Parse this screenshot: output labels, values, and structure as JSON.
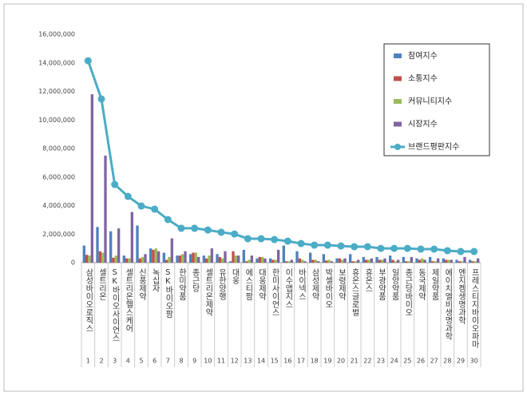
{
  "chart_data": {
    "type": "bar_line",
    "categories": [
      "삼성바이오로직스",
      "셀트리온",
      "SK바이오사이언스",
      "셀트리온헬스케어",
      "신풍제약",
      "녹십자",
      "SK바이오팜",
      "한미약품",
      "종근당",
      "셀트리온제약",
      "유한양행",
      "대웅",
      "에스티팜",
      "대웅제약",
      "한미사이언스",
      "이수앱지스",
      "바이넥스",
      "삼성제약",
      "박셀바이오",
      "보령제약",
      "휴온스글로벌",
      "휴온스",
      "부광약품",
      "일양약품",
      "종근당바이오",
      "동국제약",
      "제일약품",
      "에이치엘비생명과학",
      "엔지켐생명과학",
      "프레스티지바이오파마"
    ],
    "ranks": [
      1,
      2,
      3,
      4,
      5,
      6,
      7,
      8,
      9,
      10,
      11,
      12,
      13,
      14,
      15,
      16,
      17,
      18,
      19,
      20,
      21,
      22,
      23,
      24,
      25,
      26,
      27,
      28,
      29,
      30
    ],
    "series": [
      {
        "name": "참여지수",
        "color": "#4f81bd",
        "kind": "bar",
        "values": [
          1200000,
          2500000,
          2200000,
          500000,
          2600000,
          1000000,
          700000,
          500000,
          600000,
          500000,
          600000,
          100000,
          900000,
          300000,
          300000,
          1200000,
          800000,
          700000,
          600000,
          300000,
          600000,
          400000,
          400000,
          500000,
          400000,
          300000,
          400000,
          300000,
          200000,
          200000
        ]
      },
      {
        "name": "소통지수",
        "color": "#c0504d",
        "kind": "bar",
        "values": [
          550000,
          800000,
          350000,
          300000,
          300000,
          900000,
          200000,
          500000,
          700000,
          300000,
          400000,
          800000,
          100000,
          400000,
          200000,
          100000,
          300000,
          200000,
          150000,
          300000,
          100000,
          200000,
          200000,
          200000,
          100000,
          200000,
          100000,
          200000,
          100000,
          100000
        ]
      },
      {
        "name": "커뮤니티지수",
        "color": "#9bbb59",
        "kind": "bar",
        "values": [
          500000,
          700000,
          500000,
          300000,
          400000,
          1000000,
          400000,
          600000,
          700000,
          500000,
          300000,
          500000,
          200000,
          400000,
          200000,
          100000,
          200000,
          200000,
          200000,
          200000,
          100000,
          200000,
          200000,
          100000,
          100000,
          300000,
          100000,
          200000,
          100000,
          100000
        ]
      },
      {
        "name": "시장지수",
        "color": "#8064a2",
        "kind": "bar",
        "values": [
          11800000,
          7500000,
          2400000,
          3550000,
          600000,
          800000,
          1700000,
          800000,
          400000,
          1000000,
          800000,
          500000,
          500000,
          300000,
          900000,
          200000,
          100000,
          100000,
          100000,
          300000,
          200000,
          300000,
          300000,
          200000,
          400000,
          200000,
          300000,
          200000,
          400000,
          300000
        ]
      },
      {
        "name": "브랜드평판지수",
        "color": "#4bacc6",
        "kind": "line",
        "values": [
          14150000,
          11470000,
          5480000,
          4640000,
          3970000,
          3750000,
          3020000,
          2410000,
          2410000,
          2290000,
          2130000,
          2010000,
          1680000,
          1680000,
          1620000,
          1510000,
          1340000,
          1230000,
          1230000,
          1170000,
          1120000,
          1120000,
          1000000,
          1000000,
          1000000,
          950000,
          950000,
          840000,
          780000,
          780000
        ]
      }
    ],
    "ylim": [
      0,
      16000000
    ],
    "yticks": [
      0,
      {
        "value": 2000000,
        "label": "2,000,000"
      },
      {
        "value": 4000000,
        "label": "4,000,000"
      },
      {
        "value": 6000000,
        "label": "6,000,000"
      },
      {
        "value": 8000000,
        "label": "8,000,000"
      },
      {
        "value": 10000000,
        "label": "10,000,000"
      },
      {
        "value": 12000000,
        "label": "12,000,000"
      },
      {
        "value": 14000000,
        "label": "14,000,000"
      },
      {
        "value": 16000000,
        "label": "16,000,000"
      }
    ]
  }
}
